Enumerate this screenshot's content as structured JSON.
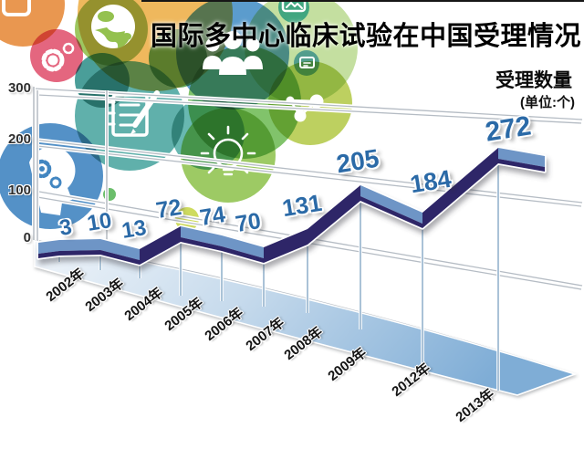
{
  "header": {
    "title": "国际多中心临床试验在中国受理情况"
  },
  "legend": {
    "label": "受理数量",
    "unit": "(单位:个)"
  },
  "y_axis": {
    "ticks": [
      "300",
      "200",
      "100",
      "0"
    ]
  },
  "chart_data": {
    "type": "line",
    "style": "3d-ribbon",
    "title": "国际多中心临床试验在中国受理情况",
    "series": [
      {
        "name": "受理数量",
        "values": [
          3,
          10,
          13,
          72,
          74,
          70,
          131,
          205,
          184,
          272
        ]
      }
    ],
    "categories": [
      "2002年",
      "2003年",
      "2004年",
      "2005年",
      "2006年",
      "2007年",
      "2008年",
      "2009年",
      "2012年",
      "2013年"
    ],
    "values": [
      3,
      10,
      13,
      72,
      74,
      70,
      131,
      205,
      184,
      272
    ],
    "ylabel": "受理数量",
    "unit": "个",
    "ylim": [
      0,
      300
    ],
    "y_ticks": [
      0,
      100,
      200,
      300
    ],
    "grid": true,
    "legend_position": "top-right"
  },
  "colors": {
    "ribbon_dark": "#2d2668",
    "ribbon_light": "#6e95c6",
    "value_label": "#2b6aa7",
    "floor_near": "#eef4fa",
    "floor_far": "#7fadd6",
    "grid": "#b5bcc4"
  },
  "decorations": {
    "bubble_icons": [
      "chat-window-icon",
      "globe-icon",
      "people-group-icon",
      "gears-icon",
      "photo-icon",
      "presentation-board-icon",
      "notepad-pencil-icon",
      "molecule-icon",
      "lightbulb-icon",
      "head-gears-icon"
    ]
  }
}
